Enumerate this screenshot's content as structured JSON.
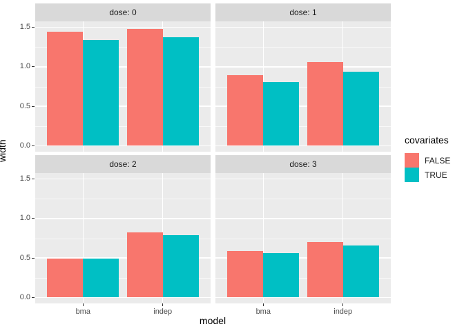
{
  "chart_data": {
    "type": "bar",
    "title": "",
    "xlabel": "model",
    "ylabel": "width",
    "categories": [
      "bma",
      "indep"
    ],
    "y_ticks": [
      {
        "label": "0.0",
        "value": 0.0
      },
      {
        "label": "0.5",
        "value": 0.5
      },
      {
        "label": "1.0",
        "value": 1.0
      },
      {
        "label": "1.5",
        "value": 1.5
      }
    ],
    "y_minor_ticks": [
      0.25,
      0.75,
      1.25
    ],
    "ylim": [
      -0.075,
      1.575
    ],
    "grid": "on",
    "legend": {
      "title": "covariates",
      "position": "right",
      "entries": [
        {
          "label": "FALSE",
          "color": "#F8766D"
        },
        {
          "label": "TRUE",
          "color": "#00BFC4"
        }
      ]
    },
    "facets": [
      {
        "label": "dose: 0",
        "series": [
          {
            "name": "FALSE",
            "color": "#F8766D",
            "values": [
              1.44,
              1.48
            ]
          },
          {
            "name": "TRUE",
            "color": "#00BFC4",
            "values": [
              1.34,
              1.37
            ]
          }
        ]
      },
      {
        "label": "dose: 1",
        "series": [
          {
            "name": "FALSE",
            "color": "#F8766D",
            "values": [
              0.89,
              1.06
            ]
          },
          {
            "name": "TRUE",
            "color": "#00BFC4",
            "values": [
              0.81,
              0.94
            ]
          }
        ]
      },
      {
        "label": "dose: 2",
        "series": [
          {
            "name": "FALSE",
            "color": "#F8766D",
            "values": [
              0.49,
              0.82
            ]
          },
          {
            "name": "TRUE",
            "color": "#00BFC4",
            "values": [
              0.49,
              0.79
            ]
          }
        ]
      },
      {
        "label": "dose: 3",
        "series": [
          {
            "name": "FALSE",
            "color": "#F8766D",
            "values": [
              0.59,
              0.7
            ]
          },
          {
            "name": "TRUE",
            "color": "#00BFC4",
            "values": [
              0.56,
              0.66
            ]
          }
        ]
      }
    ],
    "theme": {
      "panel_bg": "#EBEBEB",
      "strip_bg": "#D9D9D9",
      "grid_color": "#FFFFFF",
      "tick_label_color": "#4D4D4D",
      "axis_title_color": "#000000"
    }
  }
}
